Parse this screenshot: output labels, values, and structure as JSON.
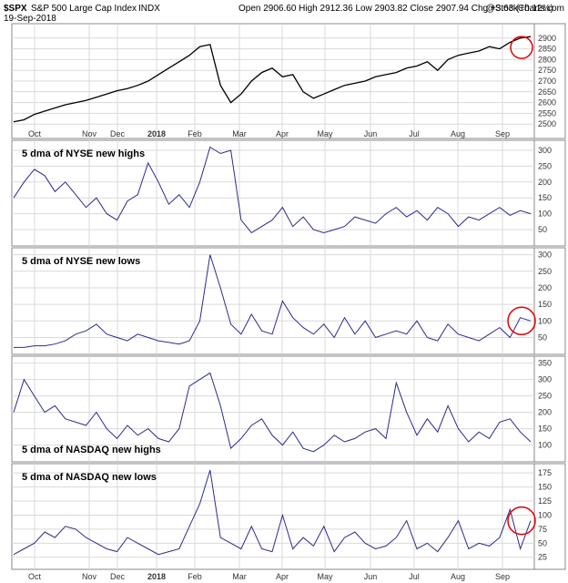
{
  "header": {
    "symbol": "$SPX",
    "name": "S&P 500 Large Cap Index",
    "exchange": "INDX",
    "date": "19-Sep-2018",
    "ohlc": "Open 2906.60  High 2912.36  Low 2903.82  Close 2907.94  Chg +3.63 (+0.12%)",
    "credit": "@StockCharts.com"
  },
  "x_axis": {
    "months": [
      "Oct",
      "Nov",
      "Dec",
      "2018",
      "Feb",
      "Mar",
      "Apr",
      "May",
      "Jun",
      "Jul",
      "Aug",
      "Sep"
    ]
  },
  "colors": {
    "line": "#2b2b8c",
    "price": "#000000",
    "grid": "#d9d9d9",
    "highlight": "#e00000",
    "frame": "#888888"
  },
  "chart_data": [
    {
      "type": "line",
      "panel": "price",
      "title": "",
      "ylim": [
        2450,
        2950
      ],
      "yticks": [
        2500,
        2550,
        2600,
        2650,
        2700,
        2750,
        2800,
        2850,
        2900
      ],
      "x": [
        0,
        1,
        2,
        3,
        4,
        5,
        6,
        7,
        8,
        9,
        10,
        11,
        12,
        13,
        14,
        15,
        16,
        17,
        18,
        19,
        20,
        21,
        22,
        23,
        24,
        25,
        26,
        27,
        28,
        29,
        30,
        31,
        32,
        33,
        34,
        35,
        36,
        37,
        38,
        39,
        40,
        41,
        42,
        43,
        44,
        45,
        46,
        47,
        48,
        49,
        50
      ],
      "values": [
        2510,
        2520,
        2545,
        2560,
        2575,
        2590,
        2600,
        2610,
        2625,
        2640,
        2655,
        2665,
        2680,
        2700,
        2730,
        2760,
        2790,
        2820,
        2860,
        2870,
        2680,
        2600,
        2640,
        2700,
        2740,
        2760,
        2720,
        2730,
        2650,
        2620,
        2640,
        2660,
        2680,
        2690,
        2700,
        2720,
        2730,
        2740,
        2760,
        2770,
        2790,
        2750,
        2800,
        2820,
        2830,
        2840,
        2860,
        2850,
        2880,
        2900,
        2907
      ]
    },
    {
      "type": "line",
      "title": "5 dma of NYSE new highs",
      "ylim": [
        10,
        320
      ],
      "yticks": [
        50,
        100,
        150,
        200,
        250,
        300
      ],
      "x": [
        0,
        1,
        2,
        3,
        4,
        5,
        6,
        7,
        8,
        9,
        10,
        11,
        12,
        13,
        14,
        15,
        16,
        17,
        18,
        19,
        20,
        21,
        22,
        23,
        24,
        25,
        26,
        27,
        28,
        29,
        30,
        31,
        32,
        33,
        34,
        35,
        36,
        37,
        38,
        39,
        40,
        41,
        42,
        43,
        44,
        45,
        46,
        47,
        48,
        49,
        50
      ],
      "values": [
        150,
        200,
        240,
        220,
        170,
        200,
        160,
        120,
        150,
        100,
        80,
        140,
        160,
        260,
        200,
        130,
        160,
        120,
        200,
        310,
        290,
        300,
        80,
        40,
        60,
        80,
        120,
        60,
        90,
        50,
        40,
        50,
        60,
        90,
        80,
        70,
        100,
        120,
        90,
        110,
        80,
        120,
        100,
        60,
        90,
        80,
        100,
        120,
        95,
        110,
        100
      ]
    },
    {
      "type": "line",
      "title": "5 dma of NYSE new lows",
      "ylim": [
        10,
        310
      ],
      "yticks": [
        50,
        100,
        150,
        200,
        250,
        300
      ],
      "x": [
        0,
        1,
        2,
        3,
        4,
        5,
        6,
        7,
        8,
        9,
        10,
        11,
        12,
        13,
        14,
        15,
        16,
        17,
        18,
        19,
        20,
        21,
        22,
        23,
        24,
        25,
        26,
        27,
        28,
        29,
        30,
        31,
        32,
        33,
        34,
        35,
        36,
        37,
        38,
        39,
        40,
        41,
        42,
        43,
        44,
        45,
        46,
        47,
        48,
        49,
        50
      ],
      "values": [
        20,
        20,
        25,
        25,
        30,
        40,
        60,
        70,
        90,
        60,
        50,
        40,
        60,
        50,
        40,
        35,
        30,
        40,
        100,
        300,
        200,
        90,
        60,
        120,
        70,
        60,
        160,
        110,
        80,
        60,
        90,
        50,
        110,
        60,
        100,
        50,
        60,
        70,
        60,
        100,
        50,
        40,
        90,
        60,
        50,
        40,
        60,
        80,
        50,
        110,
        100
      ]
    },
    {
      "type": "line",
      "title": "5 dma of NASDAQ new highs",
      "ylim": [
        60,
        360
      ],
      "yticks": [
        100,
        150,
        200,
        250,
        300,
        350
      ],
      "x": [
        0,
        1,
        2,
        3,
        4,
        5,
        6,
        7,
        8,
        9,
        10,
        11,
        12,
        13,
        14,
        15,
        16,
        17,
        18,
        19,
        20,
        21,
        22,
        23,
        24,
        25,
        26,
        27,
        28,
        29,
        30,
        31,
        32,
        33,
        34,
        35,
        36,
        37,
        38,
        39,
        40,
        41,
        42,
        43,
        44,
        45,
        46,
        47,
        48,
        49,
        50
      ],
      "values": [
        200,
        300,
        250,
        200,
        220,
        180,
        170,
        160,
        200,
        150,
        120,
        160,
        130,
        150,
        120,
        110,
        150,
        280,
        300,
        320,
        220,
        90,
        120,
        160,
        180,
        130,
        100,
        140,
        90,
        80,
        100,
        130,
        110,
        120,
        140,
        150,
        120,
        290,
        200,
        130,
        180,
        140,
        220,
        150,
        110,
        140,
        120,
        170,
        180,
        140,
        110
      ]
    },
    {
      "type": "line",
      "title": "5 dma of NASDAQ new lows",
      "ylim": [
        10,
        185
      ],
      "yticks": [
        25,
        50,
        75,
        100,
        125,
        150,
        175
      ],
      "x": [
        0,
        1,
        2,
        3,
        4,
        5,
        6,
        7,
        8,
        9,
        10,
        11,
        12,
        13,
        14,
        15,
        16,
        17,
        18,
        19,
        20,
        21,
        22,
        23,
        24,
        25,
        26,
        27,
        28,
        29,
        30,
        31,
        32,
        33,
        34,
        35,
        36,
        37,
        38,
        39,
        40,
        41,
        42,
        43,
        44,
        45,
        46,
        47,
        48,
        49,
        50
      ],
      "values": [
        30,
        40,
        50,
        70,
        60,
        80,
        75,
        60,
        50,
        40,
        35,
        60,
        50,
        40,
        30,
        35,
        40,
        80,
        120,
        180,
        60,
        50,
        40,
        80,
        40,
        35,
        100,
        40,
        60,
        45,
        80,
        35,
        60,
        70,
        50,
        40,
        45,
        60,
        90,
        40,
        50,
        35,
        60,
        90,
        40,
        50,
        45,
        60,
        110,
        40,
        90
      ]
    }
  ]
}
